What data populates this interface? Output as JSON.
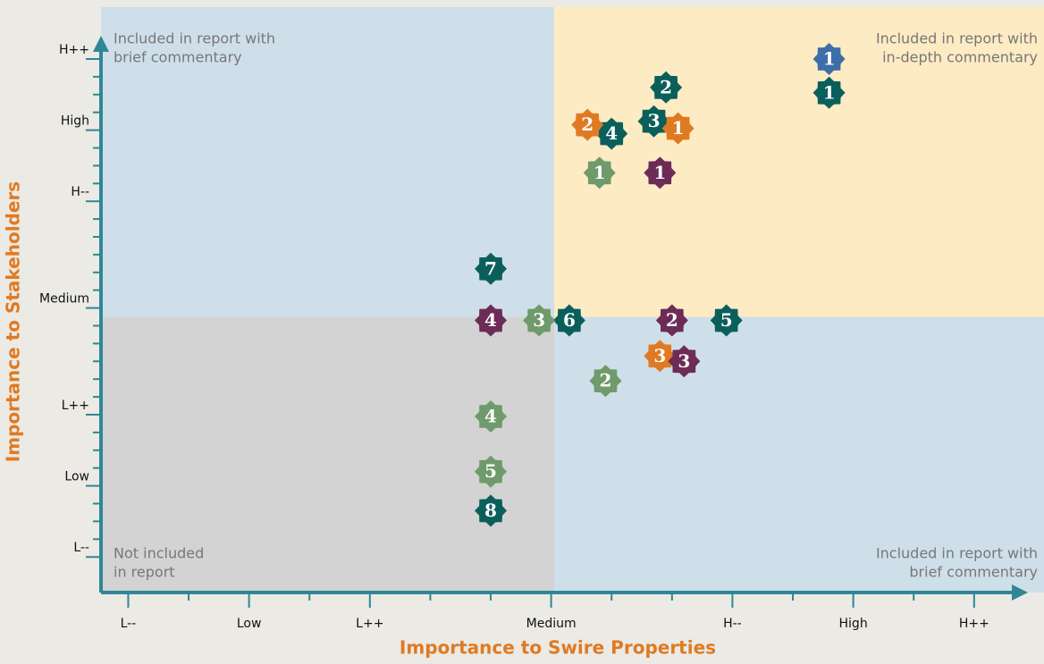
{
  "chart_data": {
    "type": "scatter",
    "x_label": "Importance to Swire Properties",
    "y_label": "Importance to Stakeholders",
    "xlim": [
      -0.45,
      15.0
    ],
    "ylim": [
      -2,
      30.9
    ],
    "xticks": [
      {
        "value": 0,
        "label": "L--"
      },
      {
        "value": 2,
        "label": "Low"
      },
      {
        "value": 4,
        "label": "L++"
      },
      {
        "value": 7,
        "label": "Medium"
      },
      {
        "value": 10,
        "label": "H--"
      },
      {
        "value": 12,
        "label": "High"
      },
      {
        "value": 14,
        "label": "H++"
      }
    ],
    "xminor": [
      1,
      3,
      5,
      6,
      8,
      9,
      11,
      13
    ],
    "yticks": [
      {
        "value": 0,
        "label": "L--"
      },
      {
        "value": 4,
        "label": "Low"
      },
      {
        "value": 8,
        "label": "L++"
      },
      {
        "value": 14,
        "label": "Medium"
      },
      {
        "value": 20,
        "label": "H--"
      },
      {
        "value": 24,
        "label": "High"
      },
      {
        "value": 28,
        "label": "H++"
      }
    ],
    "yminor": [
      1,
      2,
      3,
      5,
      6,
      7,
      9,
      10,
      11,
      12,
      13,
      15,
      16,
      17,
      18,
      19,
      21,
      22,
      23,
      25,
      26,
      27
    ],
    "split": {
      "x": 7.05,
      "y": 13.5
    },
    "quadrant_colors": {
      "top_left": "#cfdfe9",
      "top_right": "#fdebc3",
      "bottom_left": "#d3d3d3",
      "bottom_right": "#cfdfe9"
    },
    "quadrant_labels": {
      "top_left": [
        "Included in report with",
        "brief commentary"
      ],
      "top_right": [
        "Included in report with",
        "in-depth commentary"
      ],
      "bottom_left": [
        "Not included",
        "in report"
      ],
      "bottom_right": [
        "Included in report with",
        "brief commentary"
      ]
    },
    "series": [
      {
        "color": "#3e6ea8",
        "labels": [
          "1"
        ],
        "x": [
          11.6
        ],
        "values": [
          28.0
        ]
      },
      {
        "color": "#0b5f5b",
        "labels": [
          "1",
          "2",
          "3",
          "4",
          "5",
          "6",
          "7",
          "8"
        ],
        "x": [
          11.6,
          8.9,
          8.7,
          8.0,
          9.9,
          7.3,
          6.0,
          6.0
        ],
        "values": [
          26.1,
          26.4,
          24.5,
          23.8,
          13.3,
          13.3,
          16.2,
          2.6
        ]
      },
      {
        "color": "#e07a22",
        "labels": [
          "1",
          "2",
          "3"
        ],
        "x": [
          9.1,
          7.6,
          8.8
        ],
        "values": [
          24.1,
          24.3,
          11.3
        ]
      },
      {
        "color": "#6c2c55",
        "labels": [
          "1",
          "2",
          "3",
          "4"
        ],
        "x": [
          8.8,
          9.0,
          9.2,
          6.0
        ],
        "values": [
          21.6,
          13.3,
          11.0,
          13.3
        ]
      },
      {
        "color": "#6f9a6b",
        "labels": [
          "1",
          "2",
          "3",
          "4",
          "5"
        ],
        "x": [
          7.8,
          7.9,
          6.8,
          6.0,
          6.0
        ],
        "values": [
          21.6,
          9.9,
          13.3,
          7.9,
          4.8
        ]
      }
    ]
  }
}
